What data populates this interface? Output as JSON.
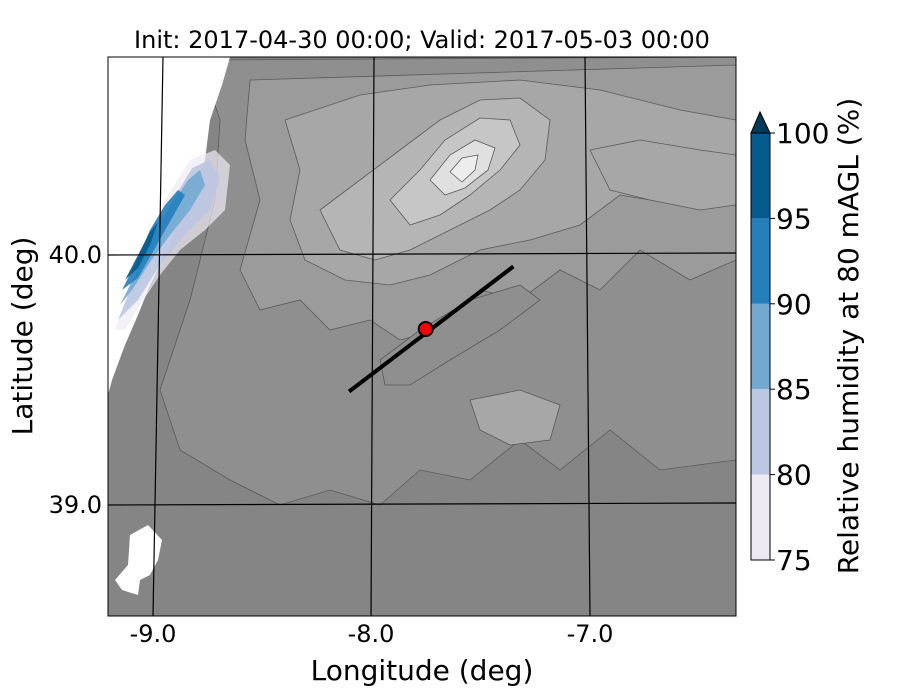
{
  "title": "Init: 2017-04-30 00:00; Valid: 2017-05-03 00:00",
  "axes": {
    "xlabel": "Longitude (deg)",
    "ylabel": "Latitude (deg)",
    "x_ticks": [
      "-9.0",
      "-8.0",
      "-7.0"
    ],
    "y_ticks": [
      "40.0",
      "39.0"
    ]
  },
  "colorbar": {
    "label": "Relative humidity at 80 mAGL (%)",
    "tick_labels": [
      "75",
      "80",
      "85",
      "90",
      "95",
      "100"
    ],
    "levels": [
      75,
      80,
      85,
      90,
      95,
      100
    ],
    "colors": [
      "#efe9f4",
      "#bcc7e1",
      "#73a9d0",
      "#2380bb",
      "#045a8d"
    ],
    "over_color": "#023858",
    "extend": "max"
  },
  "map": {
    "terrain_palette": [
      "#858585",
      "#8f8f8f",
      "#9b9b9b",
      "#a7a7a7",
      "#b5b5b5",
      "#c6c6c6",
      "#e0e0e0"
    ],
    "ocean_color": "#ffffff",
    "cross_section": {
      "start": [
        -8.1,
        39.45
      ],
      "end": [
        -7.35,
        39.95
      ]
    },
    "site_marker": {
      "lon": -7.75,
      "lat": 39.7,
      "color": "#ff0000"
    }
  }
}
